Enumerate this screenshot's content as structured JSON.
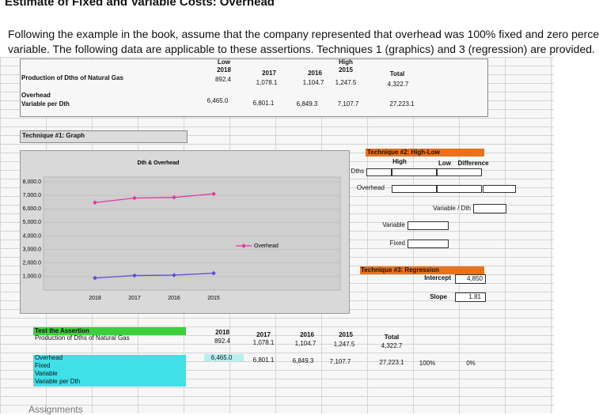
{
  "header": {
    "title": "Estimate of Fixed and Variable Costs: Overhead"
  },
  "intro": [
    "Following the example in the book, assume that the company represented that overhead was 100% fixed and zero perce",
    "variable. The following data are applicable to these assertions. Techniques 1 (graphics) and 3 (regression) are provided."
  ],
  "top_table": {
    "low": "Low",
    "high": "High",
    "total": "Total",
    "years": [
      "2018",
      "2017",
      "2016",
      "2015"
    ],
    "dths_label": "Production of Dths of Natural Gas",
    "dths": [
      "892.4",
      "1,078.1",
      "1,104.7",
      "1,247.5",
      "4,322.7"
    ],
    "overhead_label": "Overhead",
    "variable_label": "Variable per Dth",
    "overhead": [
      "6,465.0",
      "6,801.1",
      "6,849.3",
      "7,107.7",
      "27,223.1"
    ]
  },
  "technique1": "Technique #1: Graph",
  "chart_data": {
    "type": "line",
    "title": "Dth & Overhead",
    "categories": [
      "2018",
      "2017",
      "2016",
      "2015"
    ],
    "series": [
      {
        "name": "Overhead",
        "color": "#e0389a",
        "values": [
          6465.0,
          6801.1,
          6849.3,
          7107.7
        ]
      },
      {
        "color": "#5a4fd0",
        "values": [
          892.4,
          1078.1,
          1104.7,
          1247.5
        ]
      }
    ],
    "ylim": [
      0,
      8000
    ],
    "yticks": [
      {
        "value": 1000,
        "label": "1,000.0"
      },
      {
        "value": 2000,
        "label": "2,000.0"
      },
      {
        "value": 3000,
        "label": "3,000.0"
      },
      {
        "value": 4000,
        "label": "4,000.0"
      },
      {
        "value": 5000,
        "label": "5,000.0"
      },
      {
        "value": 6000,
        "label": "6,000.0"
      },
      {
        "value": 7000,
        "label": "7,000.0"
      },
      {
        "value": 8000,
        "label": "8,000.0"
      }
    ],
    "grid": true
  },
  "technique2": {
    "title": "Technique #2: High-Low",
    "high": "High",
    "low": "Low",
    "difference": "Difference",
    "dths": "Dths",
    "overhead": "Overhead",
    "variable_per_dth": "Variable / Dth",
    "variable": "Variable",
    "fixed": "Fixed"
  },
  "technique3": {
    "title": "Technique #3: Regression",
    "intercept": "Intercept",
    "intercept_value": "4,850",
    "slope": "Slope",
    "slope_value": "1.81"
  },
  "test": {
    "title": "Test the Assertion",
    "dths_label": "Production of Dths of Natural Gas",
    "years": [
      "2018",
      "2017",
      "2016",
      "2015"
    ],
    "total": "Total",
    "dths": [
      "892.4",
      "1,078.1",
      "1,104.7",
      "1,247.5",
      "4,322.7"
    ],
    "rows": [
      "Overhead",
      "Fixed",
      "Variable",
      "Variable per Dth"
    ],
    "overhead": [
      "6,465.0",
      "6,801.1",
      "6,849.3",
      "7,107.7",
      "27,223.1"
    ],
    "fixed_pct": "100%",
    "variable_pct": "0%"
  },
  "footer": "Assignments"
}
